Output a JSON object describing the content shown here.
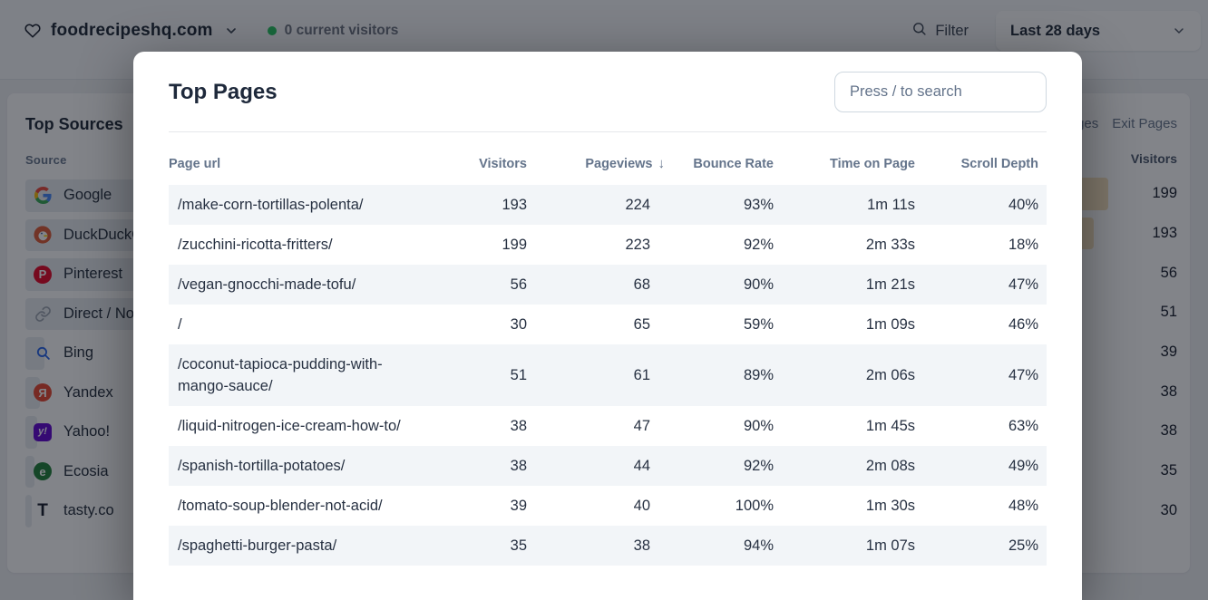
{
  "header": {
    "site_domain": "foodrecipeshq.com",
    "favicon_icon": "heart-icon",
    "current_visitors": "0 current visitors",
    "live_dot_color": "#22c55e",
    "filter_label": "Filter",
    "filter_icon": "search-icon",
    "date_range": "Last 28 days",
    "chevron_icon": "chevron-down-icon"
  },
  "background": {
    "top_sources": {
      "title": "Top Sources",
      "column_header": "Source",
      "bar_color": "#e9edf1",
      "items": [
        {
          "name": "Google",
          "icon": "google-icon",
          "bar_pct": 100
        },
        {
          "name": "DuckDuckGo",
          "icon": "duckduckgo-icon",
          "bar_pct": 72
        },
        {
          "name": "Pinterest",
          "icon": "pinterest-icon",
          "bar_pct": 30
        },
        {
          "name": "Direct / None",
          "icon": "link-icon",
          "bar_pct": 27
        },
        {
          "name": "Bing",
          "icon": "bing-icon",
          "bar_pct": 3.5
        },
        {
          "name": "Yandex",
          "icon": "yandex-icon",
          "bar_pct": 2.6
        },
        {
          "name": "Yahoo!",
          "icon": "yahoo-icon",
          "bar_pct": 2.2
        },
        {
          "name": "Ecosia",
          "icon": "ecosia-icon",
          "bar_pct": 1.6
        },
        {
          "name": "tasty.co",
          "icon": "tasty-icon",
          "bar_pct": 1.2
        }
      ]
    },
    "top_pages_panel": {
      "tabs": [
        "Entry Pages",
        "Exit Pages"
      ],
      "visitors_header": "Visitors",
      "bar_color": "#f6e2bd",
      "visitors": [
        199,
        193,
        56,
        51,
        39,
        38,
        38,
        35,
        30
      ]
    }
  },
  "modal": {
    "title": "Top Pages",
    "search_placeholder": "Press / to search",
    "table": {
      "columns": [
        "Page url",
        "Visitors",
        "Pageviews",
        "Bounce Rate",
        "Time on Page",
        "Scroll Depth"
      ],
      "sort": {
        "column": "Pageviews",
        "direction_icon": "↓"
      },
      "stripe_color": "#f2f5f8",
      "rows": [
        {
          "url": "/make-corn-tortillas-polenta/",
          "visitors": 193,
          "pageviews": 224,
          "bounce_rate": "93%",
          "time_on_page": "1m 11s",
          "scroll_depth": "40%"
        },
        {
          "url": "/zucchini-ricotta-fritters/",
          "visitors": 199,
          "pageviews": 223,
          "bounce_rate": "92%",
          "time_on_page": "2m 33s",
          "scroll_depth": "18%"
        },
        {
          "url": "/vegan-gnocchi-made-tofu/",
          "visitors": 56,
          "pageviews": 68,
          "bounce_rate": "90%",
          "time_on_page": "1m 21s",
          "scroll_depth": "47%"
        },
        {
          "url": "/",
          "visitors": 30,
          "pageviews": 65,
          "bounce_rate": "59%",
          "time_on_page": "1m 09s",
          "scroll_depth": "46%"
        },
        {
          "url": "/coconut-tapioca-pudding-with-mango-sauce/",
          "visitors": 51,
          "pageviews": 61,
          "bounce_rate": "89%",
          "time_on_page": "2m 06s",
          "scroll_depth": "47%"
        },
        {
          "url": "/liquid-nitrogen-ice-cream-how-to/",
          "visitors": 38,
          "pageviews": 47,
          "bounce_rate": "90%",
          "time_on_page": "1m 45s",
          "scroll_depth": "63%"
        },
        {
          "url": "/spanish-tortilla-potatoes/",
          "visitors": 38,
          "pageviews": 44,
          "bounce_rate": "92%",
          "time_on_page": "2m 08s",
          "scroll_depth": "49%"
        },
        {
          "url": "/tomato-soup-blender-not-acid/",
          "visitors": 39,
          "pageviews": 40,
          "bounce_rate": "100%",
          "time_on_page": "1m 30s",
          "scroll_depth": "48%"
        },
        {
          "url": "/spaghetti-burger-pasta/",
          "visitors": 35,
          "pageviews": 38,
          "bounce_rate": "94%",
          "time_on_page": "1m 07s",
          "scroll_depth": "25%"
        }
      ]
    }
  }
}
